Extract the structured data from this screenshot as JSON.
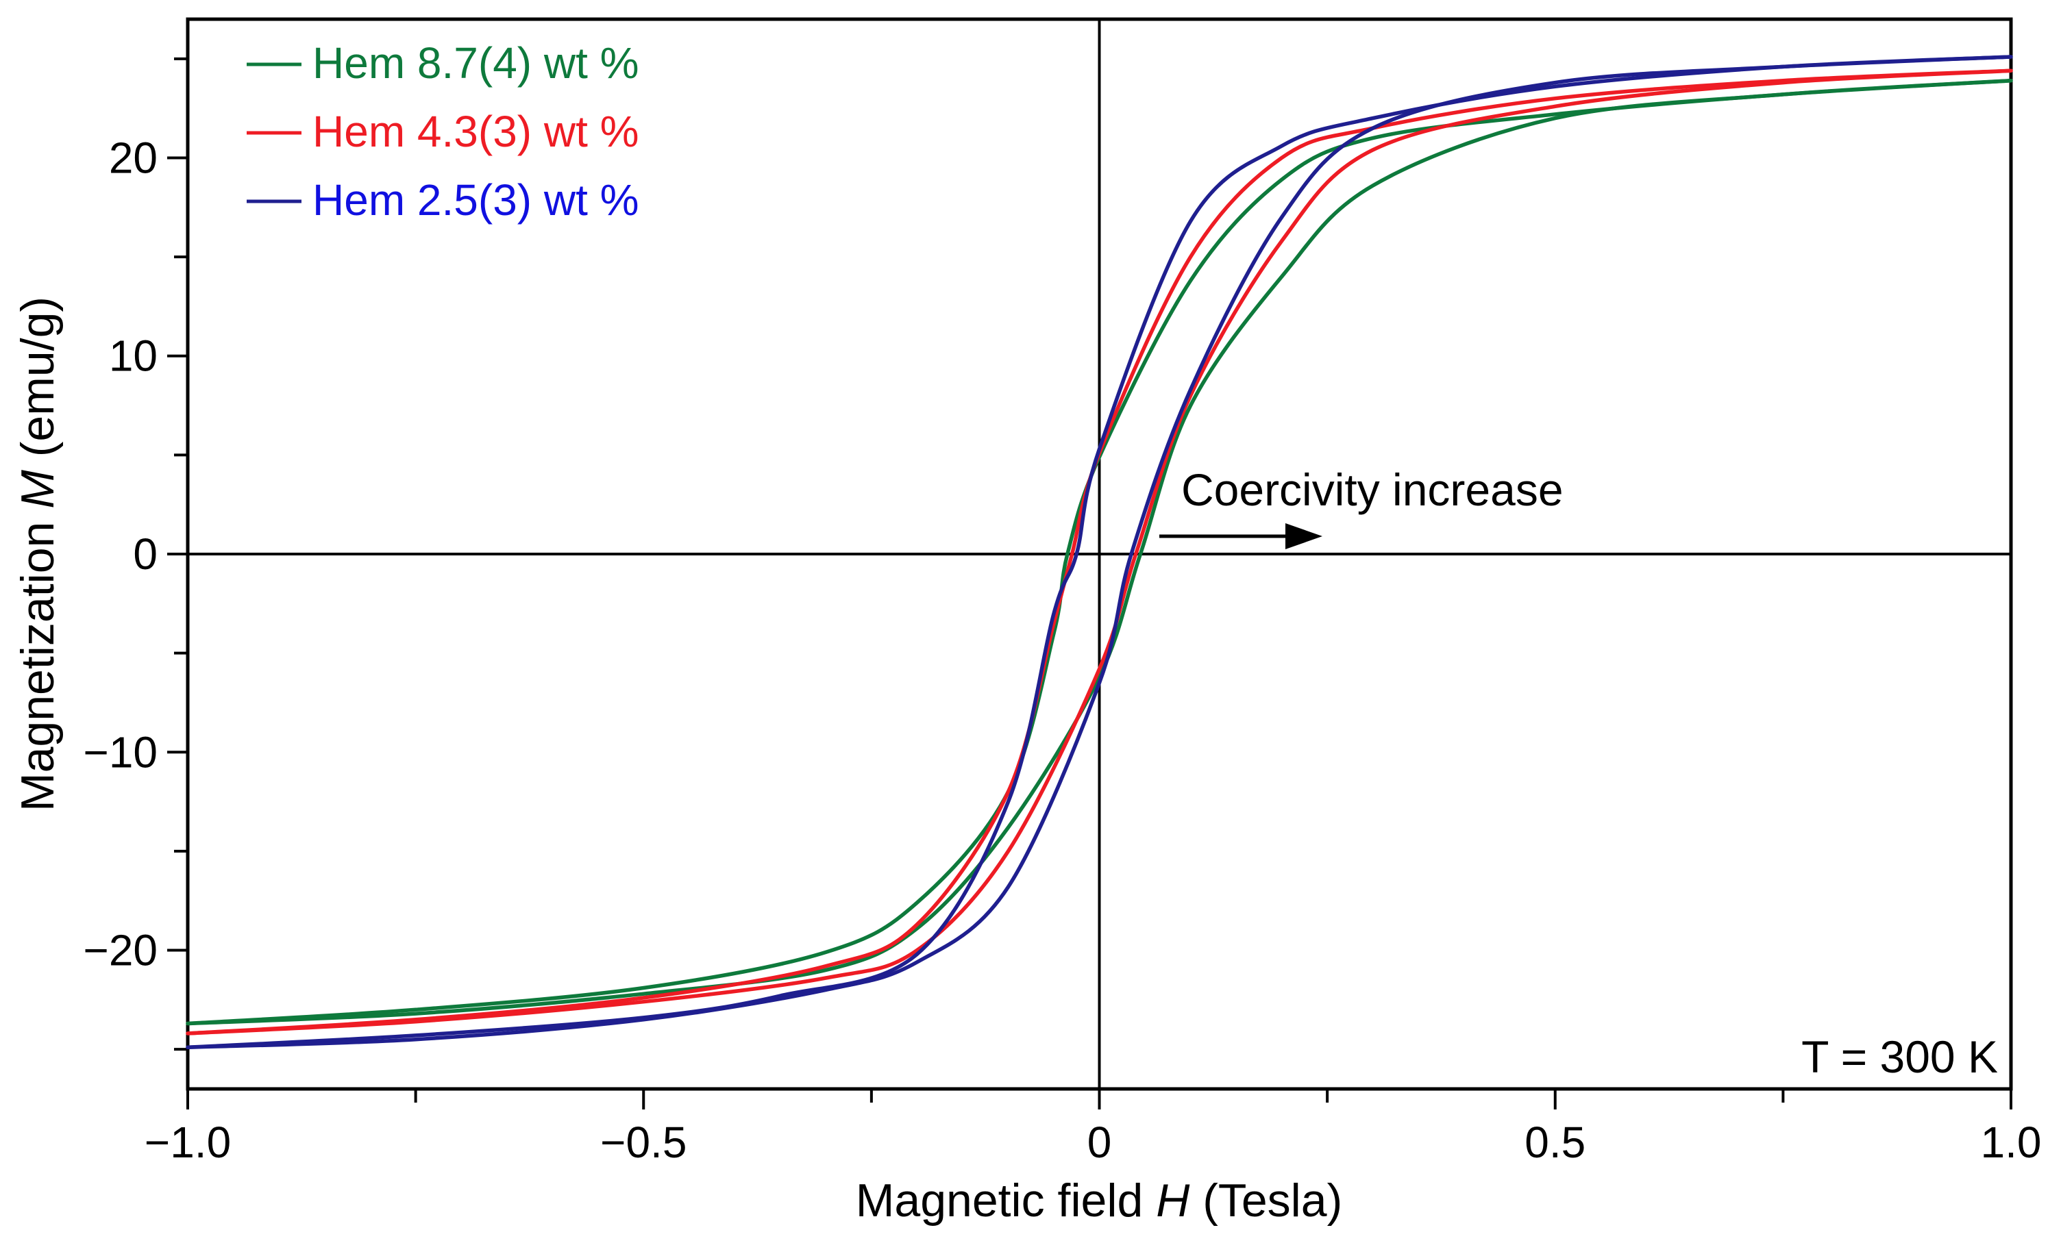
{
  "chart_data": {
    "type": "line",
    "title": "",
    "xlabel": {
      "prefix": "Magnetic field ",
      "symbol": "H",
      "suffix": " (Tesla)"
    },
    "ylabel": {
      "prefix": "Magnetization ",
      "symbol": "M",
      "suffix": " (emu/g)"
    },
    "xlim": [
      -1.0,
      1.0
    ],
    "ylim": [
      -27,
      27
    ],
    "x_ticks_major": [
      -1.0,
      -0.5,
      0,
      0.5,
      1.0
    ],
    "x_tick_labels": [
      "−1.0",
      "−0.5",
      "0",
      "0.5",
      "1.0"
    ],
    "x_ticks_minor": [
      -0.75,
      -0.25,
      0.25,
      0.75
    ],
    "y_ticks_major": [
      -20,
      -10,
      0,
      10,
      20
    ],
    "y_tick_labels": [
      "−20",
      "−10",
      "0",
      "10",
      "20"
    ],
    "y_ticks_minor": [
      -25,
      -15,
      -5,
      5,
      15,
      25
    ],
    "grid": false,
    "legend_position": "top-left",
    "annotations": {
      "arrow_label": "Coercivity increase",
      "temperature": "T = 300 K"
    },
    "series": [
      {
        "name": "Hem 8.7(4) wt %",
        "color": "#0e7a3c",
        "coercivity": 0.045,
        "upper_branch": [
          [
            -1.0,
            -23.7
          ],
          [
            -0.75,
            -23.0
          ],
          [
            -0.5,
            -21.9
          ],
          [
            -0.3,
            -20.1
          ],
          [
            -0.2,
            -17.6
          ],
          [
            -0.1,
            -12.0
          ],
          [
            -0.05,
            -4.0
          ],
          [
            -0.035,
            0
          ],
          [
            0,
            4.9
          ],
          [
            0.1,
            13.8
          ],
          [
            0.2,
            18.9
          ],
          [
            0.3,
            21.0
          ],
          [
            0.5,
            22.2
          ],
          [
            0.75,
            23.2
          ],
          [
            1.0,
            23.9
          ]
        ],
        "lower_branch": [
          [
            -1.0,
            -23.7
          ],
          [
            -0.75,
            -23.2
          ],
          [
            -0.5,
            -22.2
          ],
          [
            -0.3,
            -21.0
          ],
          [
            -0.2,
            -18.9
          ],
          [
            -0.1,
            -13.8
          ],
          [
            0,
            -6.2
          ],
          [
            0.045,
            0
          ],
          [
            0.1,
            7.5
          ],
          [
            0.2,
            14.0
          ],
          [
            0.3,
            18.6
          ],
          [
            0.5,
            22.0
          ],
          [
            0.75,
            23.2
          ],
          [
            1.0,
            23.9
          ]
        ]
      },
      {
        "name": "Hem 4.3(3) wt %",
        "color": "#ee1c24",
        "coercivity": 0.04,
        "upper_branch": [
          [
            -1.0,
            -24.2
          ],
          [
            -0.75,
            -23.5
          ],
          [
            -0.5,
            -22.4
          ],
          [
            -0.3,
            -20.8
          ],
          [
            -0.2,
            -18.7
          ],
          [
            -0.1,
            -12.0
          ],
          [
            -0.05,
            -3.5
          ],
          [
            -0.03,
            0
          ],
          [
            0,
            5.1
          ],
          [
            0.1,
            15.0
          ],
          [
            0.2,
            20.0
          ],
          [
            0.3,
            21.5
          ],
          [
            0.5,
            23.0
          ],
          [
            0.75,
            23.9
          ],
          [
            1.0,
            24.4
          ]
        ],
        "lower_branch": [
          [
            -1.0,
            -24.2
          ],
          [
            -0.75,
            -23.6
          ],
          [
            -0.5,
            -22.6
          ],
          [
            -0.3,
            -21.4
          ],
          [
            -0.2,
            -20.0
          ],
          [
            -0.1,
            -15.0
          ],
          [
            0,
            -5.8
          ],
          [
            0.04,
            0
          ],
          [
            0.1,
            8.0
          ],
          [
            0.2,
            15.8
          ],
          [
            0.3,
            20.4
          ],
          [
            0.5,
            22.6
          ],
          [
            0.75,
            23.8
          ],
          [
            1.0,
            24.4
          ]
        ]
      },
      {
        "name": "Hem 2.5(3) wt %",
        "color": "#1f1f8f",
        "coercivity": 0.035,
        "upper_branch": [
          [
            -1.0,
            -24.9
          ],
          [
            -0.75,
            -24.3
          ],
          [
            -0.5,
            -23.4
          ],
          [
            -0.35,
            -22.3
          ],
          [
            -0.2,
            -20.2
          ],
          [
            -0.1,
            -12.5
          ],
          [
            -0.05,
            -3.0
          ],
          [
            -0.025,
            0
          ],
          [
            0,
            5.3
          ],
          [
            0.1,
            16.8
          ],
          [
            0.2,
            20.6
          ],
          [
            0.3,
            22.0
          ],
          [
            0.5,
            23.6
          ],
          [
            0.75,
            24.6
          ],
          [
            1.0,
            25.1
          ]
        ],
        "lower_branch": [
          [
            -1.0,
            -24.9
          ],
          [
            -0.75,
            -24.5
          ],
          [
            -0.5,
            -23.5
          ],
          [
            -0.3,
            -22.0
          ],
          [
            -0.2,
            -20.6
          ],
          [
            -0.1,
            -16.8
          ],
          [
            0,
            -6.5
          ],
          [
            0.035,
            0
          ],
          [
            0.1,
            8.3
          ],
          [
            0.2,
            17.0
          ],
          [
            0.3,
            21.5
          ],
          [
            0.5,
            23.8
          ],
          [
            0.75,
            24.6
          ],
          [
            1.0,
            25.1
          ]
        ]
      }
    ]
  }
}
